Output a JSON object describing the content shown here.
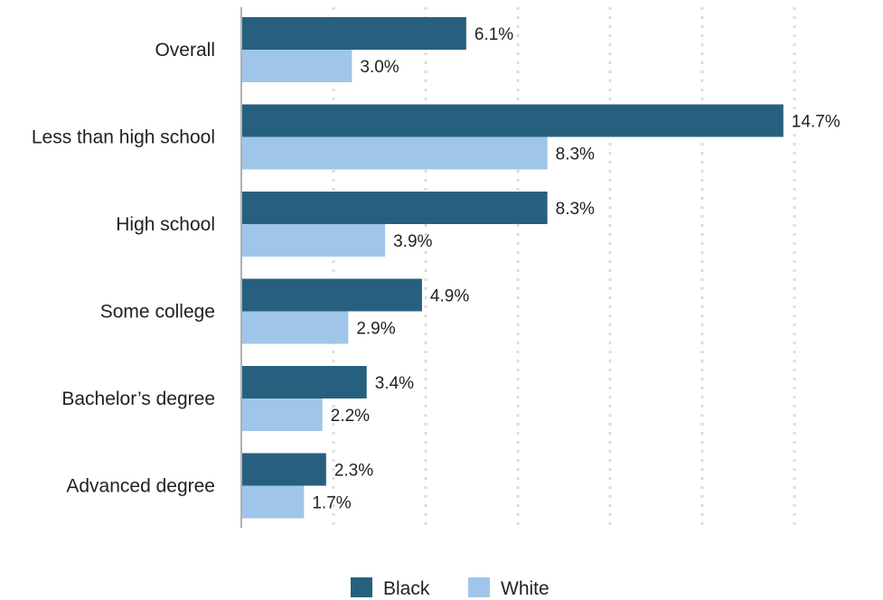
{
  "chart_data": {
    "type": "bar",
    "orientation": "horizontal",
    "categories": [
      "Overall",
      "Less than high school",
      "High school",
      "Some college",
      "Bachelor’s degree",
      "Advanced degree"
    ],
    "series": [
      {
        "name": "Black",
        "color": "#27607f",
        "values": [
          6.1,
          14.7,
          8.3,
          4.9,
          3.4,
          2.3
        ],
        "labels": [
          "6.1%",
          "14.7%",
          "8.3%",
          "4.9%",
          "3.4%",
          "2.3%"
        ]
      },
      {
        "name": "White",
        "color": "#9fc6e8",
        "values": [
          3.0,
          8.3,
          3.9,
          2.9,
          2.2,
          1.7
        ],
        "labels": [
          "3.0%",
          "8.3%",
          "3.9%",
          "2.9%",
          "2.2%",
          "1.7%"
        ]
      }
    ],
    "xlim": [
      0,
      15
    ],
    "gridlines": [
      2.5,
      5,
      7.5,
      10,
      12.5,
      15
    ],
    "grid": "vertical dotted",
    "legend_position": "bottom-center",
    "title": "",
    "xlabel": "",
    "ylabel": ""
  }
}
